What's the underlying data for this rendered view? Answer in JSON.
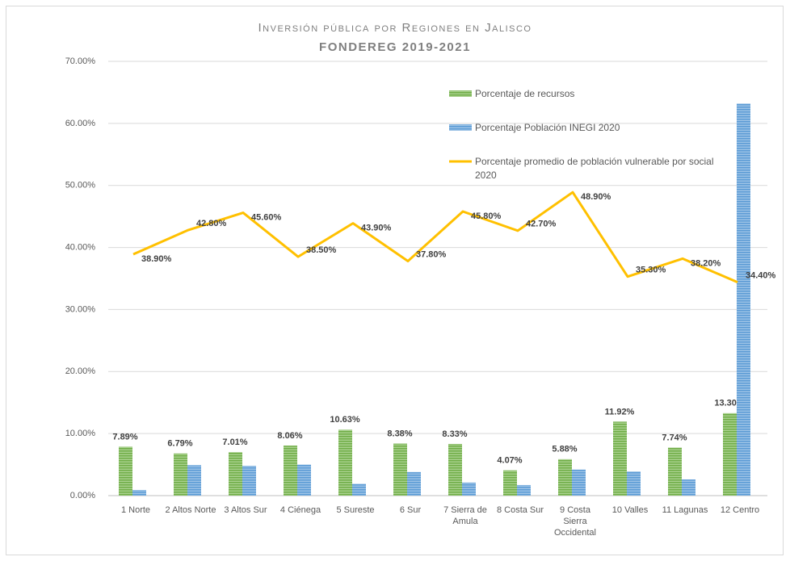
{
  "chart_data": {
    "type": "bar_line",
    "title": "Inversión pública por Regiones en Jalisco",
    "subtitle": "FONDEREG 2019-2021",
    "categories": [
      "1 Norte",
      "2 Altos Norte",
      "3 Altos Sur",
      "4 Ciénega",
      "5 Sureste",
      "6 Sur",
      "7 Sierra de Amula",
      "8 Costa Sur",
      "9 Costa Sierra Occidental",
      "10 Valles",
      "11 Lagunas",
      "12 Centro"
    ],
    "series": [
      {
        "name": "Porcentaje de recursos",
        "type": "bar",
        "color": "#70ad47",
        "values": [
          7.89,
          6.79,
          7.01,
          8.06,
          10.63,
          8.38,
          8.33,
          4.07,
          5.88,
          11.92,
          7.74,
          13.3
        ],
        "value_labels": [
          "7.89%",
          "6.79%",
          "7.01%",
          "8.06%",
          "10.63%",
          "8.38%",
          "8.33%",
          "4.07%",
          "5.88%",
          "11.92%",
          "7.74%",
          "13.30%"
        ]
      },
      {
        "name": "Porcentaje Población INEGI 2020",
        "type": "bar",
        "color": "#5b9bd5",
        "values": [
          0.9,
          4.9,
          4.8,
          5.0,
          1.9,
          3.8,
          2.1,
          1.7,
          4.2,
          3.9,
          2.6,
          63.2
        ]
      },
      {
        "name": "Porcentaje promedio de población vulnerable por social 2020",
        "type": "line",
        "color": "#ffc000",
        "values": [
          38.9,
          42.8,
          45.6,
          38.5,
          43.9,
          37.8,
          45.8,
          42.7,
          48.9,
          35.3,
          38.2,
          34.4
        ],
        "value_labels": [
          "38.90%",
          "42.80%",
          "45.60%",
          "38.50%",
          "43.90%",
          "37.80%",
          "45.80%",
          "42.70%",
          "48.90%",
          "35.30%",
          "38.20%",
          "34.40%"
        ]
      }
    ],
    "ylim": [
      0,
      70
    ],
    "yticks": [
      {
        "value": 0,
        "label": "0.00%"
      },
      {
        "value": 10,
        "label": "10.00%"
      },
      {
        "value": 20,
        "label": "20.00%"
      },
      {
        "value": 30,
        "label": "30.00%"
      },
      {
        "value": 40,
        "label": "40.00%"
      },
      {
        "value": 50,
        "label": "50.00%"
      },
      {
        "value": 60,
        "label": "60.00%"
      },
      {
        "value": 70,
        "label": "70.00%"
      }
    ],
    "grid": true
  }
}
